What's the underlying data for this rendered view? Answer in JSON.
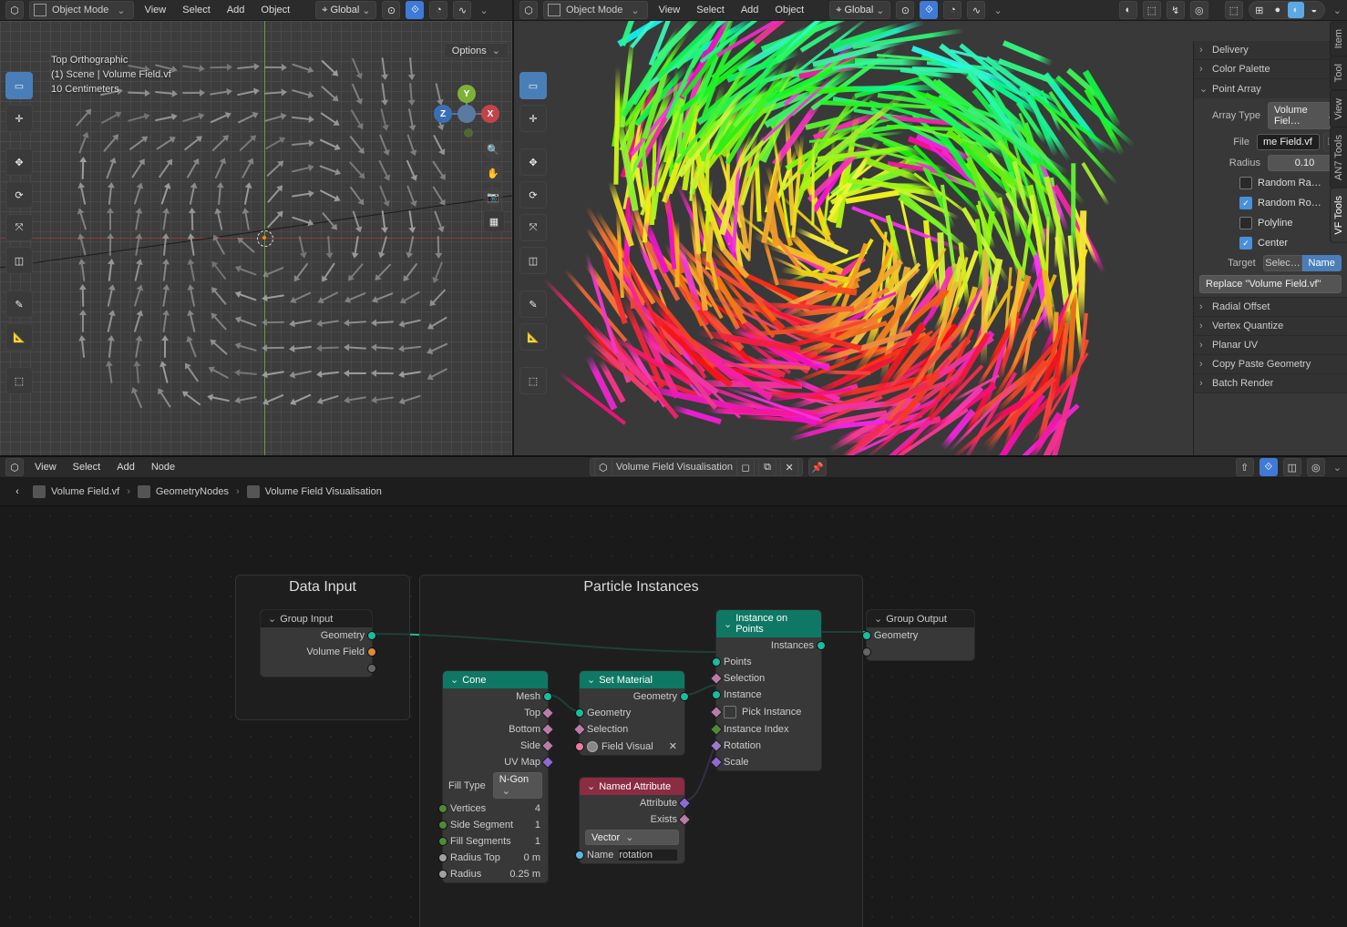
{
  "headerLeft": {
    "mode": "Object Mode",
    "menus": [
      "View",
      "Select",
      "Add",
      "Object"
    ],
    "orientation": "Global"
  },
  "headerRight": {
    "mode": "Object Mode",
    "menus": [
      "View",
      "Select",
      "Add",
      "Object"
    ],
    "orientation": "Global"
  },
  "optionsLabel": "Options",
  "overlayText": {
    "line1": "Top Orthographic",
    "line2": "(1) Scene | Volume Field.vf",
    "line3": "10 Centimeters"
  },
  "gizmo": {
    "x": "X",
    "y": "Y",
    "z": "Z"
  },
  "nTabs": [
    "Item",
    "Tool",
    "View",
    "AN7 Tools",
    "VF Tools"
  ],
  "sidePanels": {
    "collapsed": [
      "Delivery",
      "Color Palette"
    ],
    "pointArray": {
      "title": "Point Array",
      "arrayTypeLabel": "Array Type",
      "arrayTypeValue": "Volume Fiel…",
      "fileLabel": "File",
      "fileValue": "me Field.vf",
      "radiusLabel": "Radius",
      "radiusValue": "0.10",
      "randomRa": "Random Ra…",
      "randomRo": "Random Ro…",
      "polyline": "Polyline",
      "center": "Center",
      "targetLabel": "Target",
      "targetSelect": "Selec…",
      "targetName": "Name",
      "replace": "Replace \"Volume Field.vf\""
    },
    "rest": [
      "Radial Offset",
      "Vertex Quantize",
      "Planar UV",
      "Copy Paste Geometry",
      "Batch Render"
    ]
  },
  "nodeHeader": {
    "menus": [
      "View",
      "Select",
      "Add",
      "Node"
    ],
    "nodegroupName": "Volume Field Visualisation"
  },
  "breadcrumb": [
    "Volume Field.vf",
    "GeometryNodes",
    "Volume Field Visualisation"
  ],
  "frames": {
    "dataInput": "Data Input",
    "particleInstances": "Particle Instances"
  },
  "nodes": {
    "groupInput": {
      "title": "Group Input",
      "out": [
        "Geometry",
        "Volume Field"
      ]
    },
    "groupOutput": {
      "title": "Group Output",
      "in": [
        "Geometry"
      ]
    },
    "cone": {
      "title": "Cone",
      "out": [
        "Mesh",
        "Top",
        "Bottom",
        "Side",
        "UV Map"
      ],
      "fillTypeLabel": "Fill Type",
      "fillType": "N-Gon",
      "params": [
        [
          "Vertices",
          "4"
        ],
        [
          "Side Segment",
          "1"
        ],
        [
          "Fill Segments",
          "1"
        ],
        [
          "Radius Top",
          "0 m"
        ],
        [
          "Radius",
          "0.25 m"
        ]
      ]
    },
    "setMaterial": {
      "title": "Set Material",
      "outGeom": "Geometry",
      "inGeom": "Geometry",
      "inSel": "Selection",
      "matSlot": "Field Visual"
    },
    "instanceOnPoints": {
      "title": "Instance on Points",
      "out": "Instances",
      "in": [
        "Points",
        "Selection",
        "Instance",
        "Pick Instance",
        "Instance Index",
        "Rotation",
        "Scale"
      ]
    },
    "namedAttribute": {
      "title": "Named Attribute",
      "out": [
        "Attribute",
        "Exists"
      ],
      "typeValue": "Vector",
      "nameLabel": "Name",
      "nameValue": "rotation"
    }
  },
  "colors": {
    "teal": "#0f7864",
    "red": "#8b2c43",
    "dark": "#1e1e1e",
    "geom": "#1abc9c",
    "vec": "#8e6ad1",
    "float": "#a0a0a0"
  }
}
